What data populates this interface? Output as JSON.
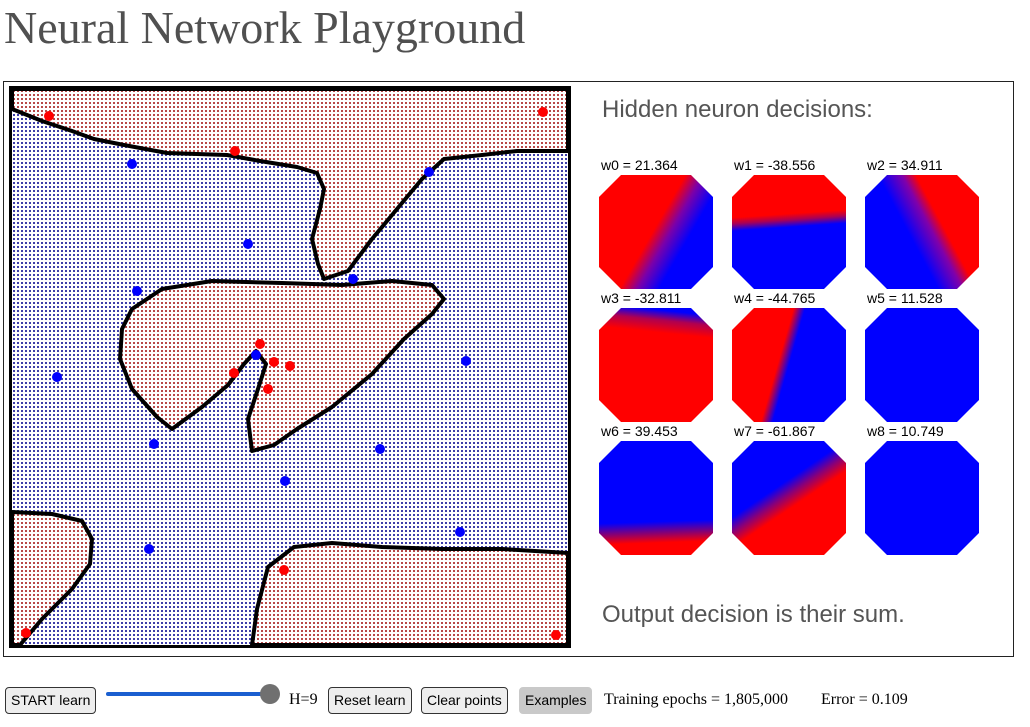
{
  "page": {
    "title": "Neural Network Playground"
  },
  "colors": {
    "red_class": "#ff0000",
    "blue_class": "#0000ff",
    "boundary": "#000000",
    "grid_red": "#b84848",
    "grid_blue": "#3d3da8",
    "slider_track": "#1a5fd0",
    "slider_thumb": "#707070"
  },
  "panel": {
    "hidden_heading": "Hidden neuron decisions:",
    "output_note": "Output decision is their sum."
  },
  "neurons": [
    {
      "label": "w0 = 21.364",
      "icon": "neuron-decision-map"
    },
    {
      "label": "w1 = -38.556",
      "icon": "neuron-decision-map"
    },
    {
      "label": "w2 = 34.911",
      "icon": "neuron-decision-map"
    },
    {
      "label": "w3 = -32.811",
      "icon": "neuron-decision-map"
    },
    {
      "label": "w4 = -44.765",
      "icon": "neuron-decision-map"
    },
    {
      "label": "w5 = 11.528",
      "icon": "neuron-decision-map"
    },
    {
      "label": "w6 = 39.453",
      "icon": "neuron-decision-map"
    },
    {
      "label": "w7 = -61.867",
      "icon": "neuron-decision-map"
    },
    {
      "label": "w8 = 10.749",
      "icon": "neuron-decision-map"
    }
  ],
  "controls": {
    "start_label": "START learn",
    "hidden_units_label": "H=9",
    "hidden_units_value": 9,
    "reset_label": "Reset learn",
    "clear_label": "Clear points",
    "examples_label": "Examples",
    "epochs_text": "Training epochs = 1,805,000",
    "error_text": "Error = 0.109"
  }
}
